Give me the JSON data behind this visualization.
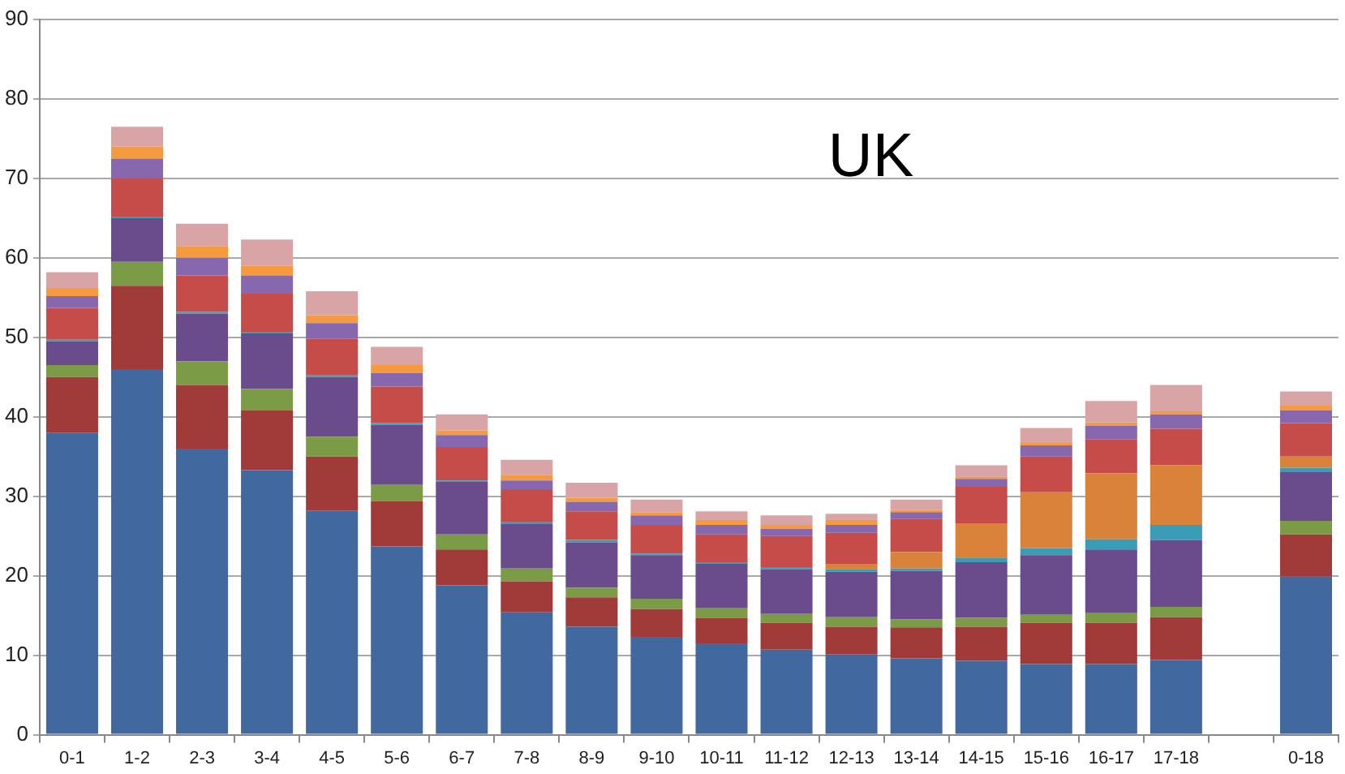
{
  "chart_data": {
    "type": "bar",
    "stacked": true,
    "title": "UK",
    "categories": [
      "0-1",
      "1-2",
      "2-3",
      "3-4",
      "4-5",
      "5-6",
      "6-7",
      "7-8",
      "8-9",
      "9-10",
      "10-11",
      "11-12",
      "12-13",
      "13-14",
      "14-15",
      "15-16",
      "16-17",
      "17-18",
      null,
      "0-18"
    ],
    "ylim": [
      0,
      90
    ],
    "yticks": [
      0,
      10,
      20,
      30,
      40,
      50,
      60,
      70,
      80,
      90
    ],
    "grid": "y",
    "legend": false,
    "series": [
      {
        "color": "#41699f",
        "values": [
          38,
          46,
          36,
          33.3,
          28.2,
          23.7,
          18.8,
          15.4,
          13.6,
          12.3,
          11.5,
          10.7,
          10.1,
          9.6,
          9.3,
          8.9,
          8.9,
          9.4,
          null,
          19.9
        ]
      },
      {
        "color": "#a13b3a",
        "values": [
          7,
          10.5,
          8,
          7.5,
          6.8,
          5.7,
          4.5,
          3.9,
          3.7,
          3.5,
          3.2,
          3.4,
          3.5,
          3.9,
          4.3,
          5.2,
          5.2,
          5.4,
          null,
          5.3
        ]
      },
      {
        "color": "#7b9b46",
        "values": [
          1.5,
          3,
          3,
          2.7,
          2.5,
          2.1,
          1.9,
          1.6,
          1.2,
          1.3,
          1.2,
          1.1,
          1.2,
          1.0,
          1.1,
          1.0,
          1.2,
          1.3,
          null,
          1.7
        ]
      },
      {
        "color": "#6a4c8c",
        "values": [
          3,
          5.5,
          6,
          7,
          7.5,
          7.5,
          6.6,
          5.6,
          5.7,
          5.5,
          5.6,
          5.6,
          5.7,
          6.1,
          7.0,
          7.5,
          8.0,
          8.4,
          null,
          6.2
        ]
      },
      {
        "color": "#3a9cb5",
        "values": [
          0.2,
          0.2,
          0.2,
          0.2,
          0.2,
          0.2,
          0.2,
          0.3,
          0.3,
          0.2,
          0.2,
          0.3,
          0.3,
          0.3,
          0.6,
          0.9,
          1.3,
          1.9,
          null,
          0.5
        ]
      },
      {
        "color": "#d9823a",
        "values": [
          0,
          0,
          0,
          0,
          0,
          0,
          0,
          0,
          0,
          0,
          0,
          0,
          0.7,
          2.1,
          4.3,
          7.0,
          8.3,
          7.5,
          null,
          1.4
        ]
      },
      {
        "color": "#c64c49",
        "values": [
          4,
          4.8,
          4.6,
          4.8,
          4.6,
          4.6,
          4.2,
          4.1,
          3.6,
          3.6,
          3.5,
          3.9,
          3.9,
          4.2,
          4.6,
          4.5,
          4.3,
          4.6,
          null,
          4.2
        ]
      },
      {
        "color": "#8767ad",
        "values": [
          1.5,
          2.5,
          2.2,
          2.3,
          2,
          1.7,
          1.5,
          1.1,
          1.2,
          1.2,
          1.2,
          0.9,
          1.0,
          0.8,
          1.0,
          1.4,
          1.7,
          1.8,
          null,
          1.6
        ]
      },
      {
        "color": "#f69a40",
        "values": [
          1,
          1.5,
          1.5,
          1.2,
          1,
          1,
          0.6,
          0.7,
          0.5,
          0.4,
          0.6,
          0.5,
          0.6,
          0.3,
          0.3,
          0.3,
          0.4,
          0.4,
          null,
          0.6
        ]
      },
      {
        "color": "#d9a4a6",
        "values": [
          2,
          2.5,
          2.8,
          3.3,
          3,
          2.3,
          2,
          1.9,
          1.9,
          1.6,
          1.1,
          1.2,
          0.8,
          1.3,
          1.4,
          1.9,
          2.7,
          3.3,
          null,
          1.8
        ]
      }
    ]
  }
}
